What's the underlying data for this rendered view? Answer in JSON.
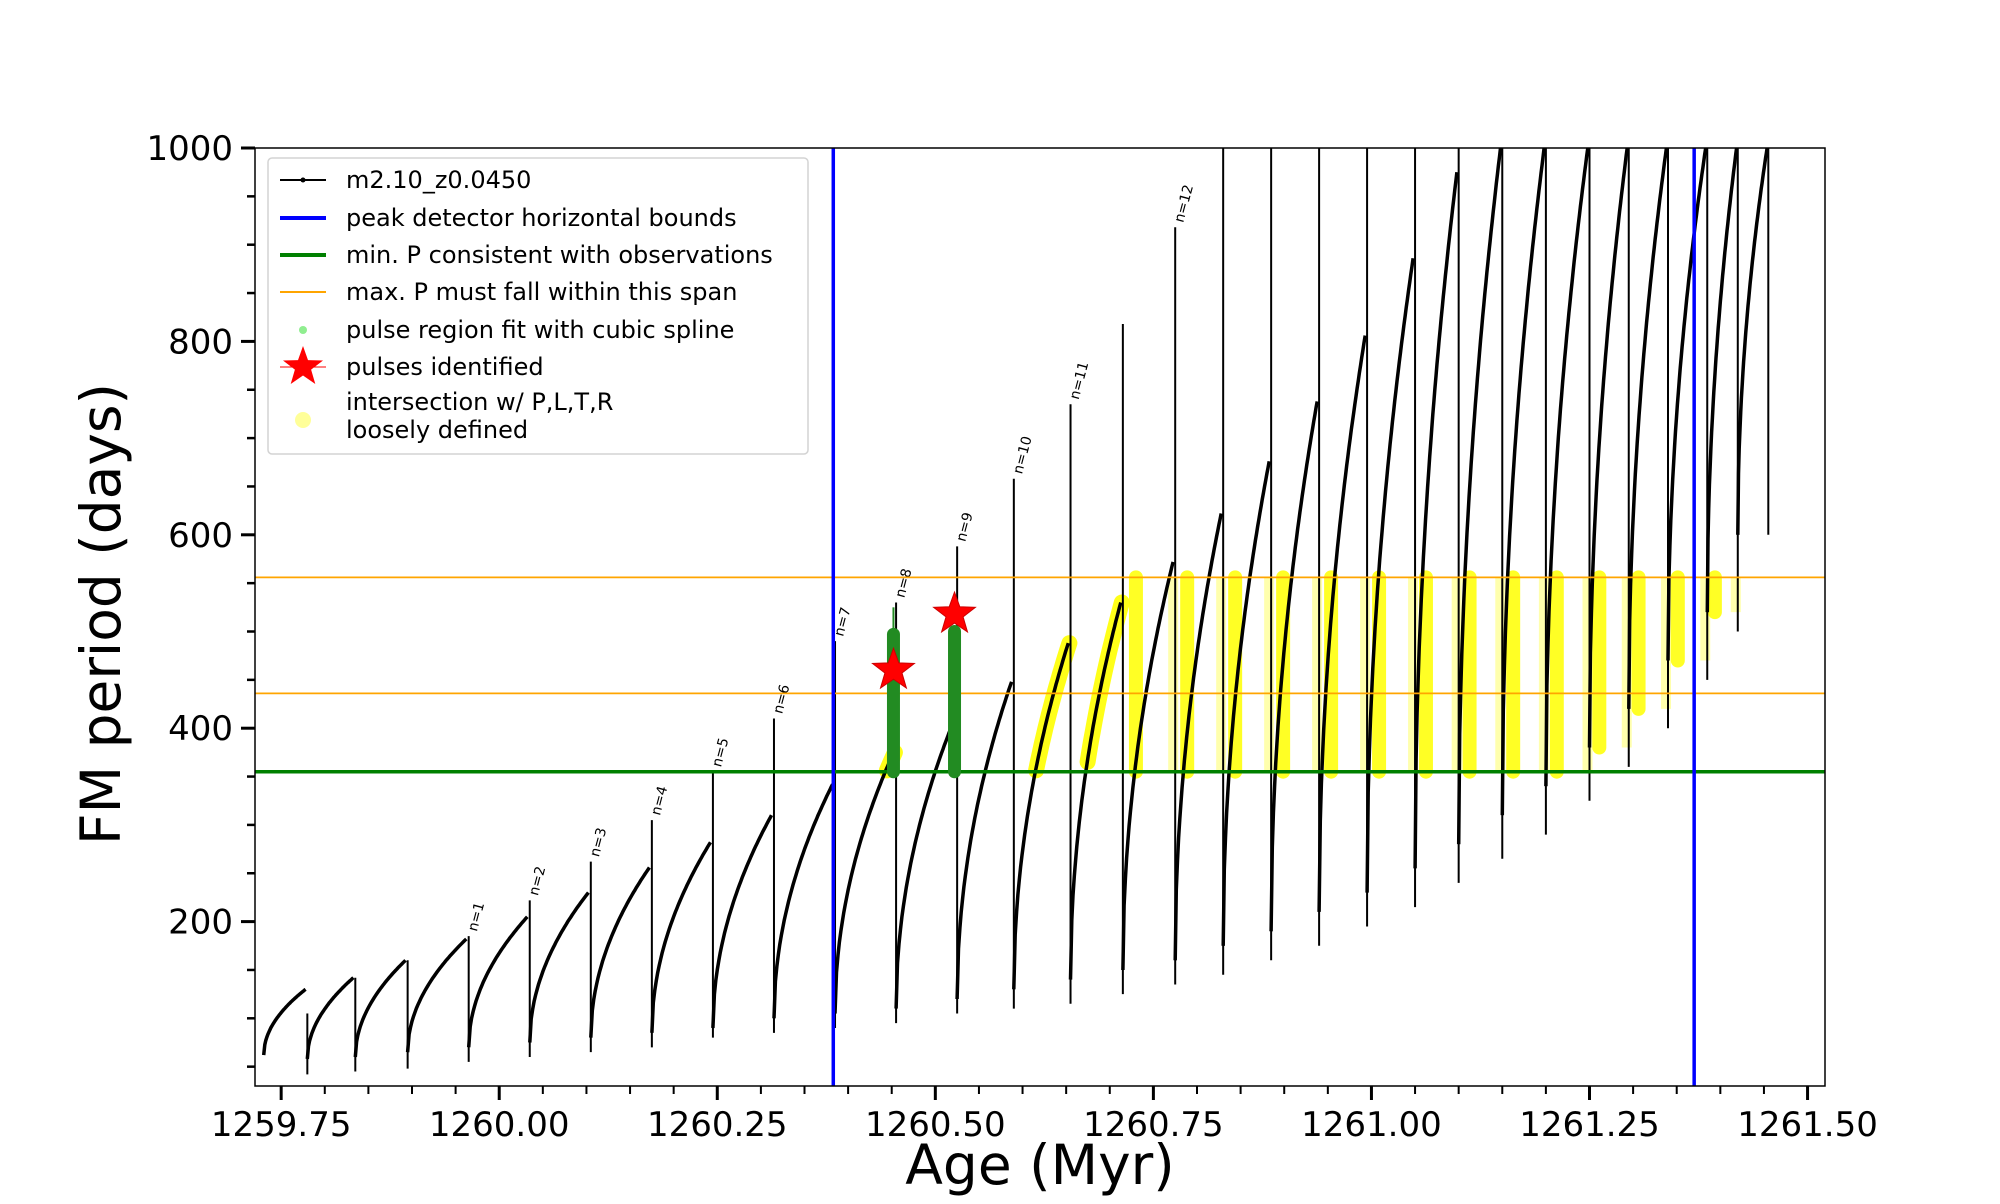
{
  "chart_data": {
    "type": "line",
    "xlabel": "Age (Myr)",
    "ylabel": "FM period (days)",
    "xlim": [
      1259.72,
      1261.52
    ],
    "ylim": [
      30,
      1000
    ],
    "x_ticks": [
      1259.75,
      1260.0,
      1260.25,
      1260.5,
      1260.75,
      1261.0,
      1261.25,
      1261.5
    ],
    "x_tick_labels": [
      "1259.75",
      "1260.00",
      "1260.25",
      "1260.50",
      "1260.75",
      "1261.00",
      "1261.25",
      "1261.50"
    ],
    "y_ticks": [
      200,
      400,
      600,
      800,
      1000
    ],
    "y_tick_labels": [
      "200",
      "400",
      "600",
      "800",
      "1000"
    ],
    "grid": false,
    "legend_position": "top-left",
    "legend": [
      {
        "label": "m2.10_z0.0450",
        "marker": "line-dot",
        "color": "#000000"
      },
      {
        "label": "peak detector horizontal bounds",
        "marker": "line",
        "color": "#0000ff"
      },
      {
        "label": "min. P consistent with observations",
        "marker": "line",
        "color": "#008000"
      },
      {
        "label": "max. P must fall within this span",
        "marker": "thin-line",
        "color": "#ffa500"
      },
      {
        "label": "pulse region fit with cubic spline",
        "marker": "dot",
        "color": "#90ee90"
      },
      {
        "label": "pulses identified",
        "marker": "star",
        "color": "#ff0000"
      },
      {
        "label": "intersection w/ P,L,T,R",
        "label2": "loosely defined",
        "marker": "circle",
        "color": "#ffff99"
      }
    ],
    "vertical_lines": [
      1260.383,
      1261.37
    ],
    "min_period_line": 355,
    "max_period_span": [
      436,
      556
    ],
    "pulses": [
      {
        "start": 1259.73,
        "end": 1259.78,
        "pmin": 62,
        "pmax": 130,
        "spike": 105,
        "low": 42,
        "label": ""
      },
      {
        "start": 1259.78,
        "end": 1259.835,
        "pmin": 58,
        "pmax": 142,
        "spike": null,
        "low": 45,
        "label": ""
      },
      {
        "start": 1259.835,
        "end": 1259.895,
        "pmin": 60,
        "pmax": 160,
        "spike": null,
        "low": 48,
        "label": ""
      },
      {
        "start": 1259.895,
        "end": 1259.965,
        "pmin": 65,
        "pmax": 182,
        "spike": 185,
        "low": 55,
        "label": "n=1"
      },
      {
        "start": 1259.965,
        "end": 1260.035,
        "pmin": 70,
        "pmax": 205,
        "spike": 222,
        "low": 60,
        "label": "n=2"
      },
      {
        "start": 1260.035,
        "end": 1260.105,
        "pmin": 75,
        "pmax": 230,
        "spike": 262,
        "low": 65,
        "label": "n=3"
      },
      {
        "start": 1260.105,
        "end": 1260.175,
        "pmin": 80,
        "pmax": 256,
        "spike": 305,
        "low": 70,
        "label": "n=4"
      },
      {
        "start": 1260.175,
        "end": 1260.245,
        "pmin": 85,
        "pmax": 282,
        "spike": 355,
        "low": 80,
        "label": "n=5"
      },
      {
        "start": 1260.245,
        "end": 1260.315,
        "pmin": 90,
        "pmax": 310,
        "spike": 410,
        "low": 85,
        "label": "n=6"
      },
      {
        "start": 1260.315,
        "end": 1260.385,
        "pmin": 100,
        "pmax": 342,
        "spike": 490,
        "low": 90,
        "label": "n=7"
      },
      {
        "start": 1260.385,
        "end": 1260.455,
        "pmin": 105,
        "pmax": 375,
        "spike": 530,
        "low": 95,
        "label": "n=8"
      },
      {
        "start": 1260.455,
        "end": 1260.525,
        "pmin": 110,
        "pmax": 410,
        "spike": 588,
        "low": 105,
        "label": "n=9"
      },
      {
        "start": 1260.525,
        "end": 1260.59,
        "pmin": 120,
        "pmax": 448,
        "spike": 658,
        "low": 110,
        "label": "n=10"
      },
      {
        "start": 1260.59,
        "end": 1260.655,
        "pmin": 130,
        "pmax": 488,
        "spike": 735,
        "low": 115,
        "label": "n=11"
      },
      {
        "start": 1260.655,
        "end": 1260.715,
        "pmin": 140,
        "pmax": 530,
        "spike": 818,
        "low": 125,
        "label": ""
      },
      {
        "start": 1260.715,
        "end": 1260.775,
        "pmin": 150,
        "pmax": 572,
        "spike": 918,
        "low": 135,
        "label": "n=12"
      },
      {
        "start": 1260.775,
        "end": 1260.83,
        "pmin": 160,
        "pmax": 622,
        "spike": 1000,
        "low": 145,
        "label": ""
      },
      {
        "start": 1260.83,
        "end": 1260.885,
        "pmin": 175,
        "pmax": 676,
        "spike": 1000,
        "low": 160,
        "label": ""
      },
      {
        "start": 1260.885,
        "end": 1260.94,
        "pmin": 190,
        "pmax": 738,
        "spike": 1000,
        "low": 175,
        "label": ""
      },
      {
        "start": 1260.94,
        "end": 1260.995,
        "pmin": 210,
        "pmax": 806,
        "spike": 1000,
        "low": 195,
        "label": ""
      },
      {
        "start": 1260.995,
        "end": 1261.05,
        "pmin": 230,
        "pmax": 886,
        "spike": 1000,
        "low": 215,
        "label": ""
      },
      {
        "start": 1261.05,
        "end": 1261.1,
        "pmin": 255,
        "pmax": 975,
        "spike": 1000,
        "low": 240,
        "label": ""
      },
      {
        "start": 1261.1,
        "end": 1261.15,
        "pmin": 280,
        "pmax": 1000,
        "spike": 1000,
        "low": 265,
        "label": ""
      },
      {
        "start": 1261.15,
        "end": 1261.2,
        "pmin": 310,
        "pmax": 1000,
        "spike": 1000,
        "low": 290,
        "label": ""
      },
      {
        "start": 1261.2,
        "end": 1261.25,
        "pmin": 340,
        "pmax": 1000,
        "spike": 1000,
        "low": 325,
        "label": ""
      },
      {
        "start": 1261.25,
        "end": 1261.295,
        "pmin": 380,
        "pmax": 1000,
        "spike": 1000,
        "low": 360,
        "label": ""
      },
      {
        "start": 1261.295,
        "end": 1261.34,
        "pmin": 420,
        "pmax": 1000,
        "spike": 1000,
        "low": 400,
        "label": ""
      },
      {
        "start": 1261.34,
        "end": 1261.385,
        "pmin": 470,
        "pmax": 1000,
        "spike": 1000,
        "low": 450,
        "label": ""
      },
      {
        "start": 1261.385,
        "end": 1261.42,
        "pmin": 520,
        "pmax": 1000,
        "spike": 1000,
        "low": 500,
        "label": ""
      },
      {
        "start": 1261.42,
        "end": 1261.455,
        "pmin": 600,
        "pmax": 1000,
        "spike": 1000,
        "low": 600,
        "label": ""
      }
    ],
    "green_spline_regions": [
      {
        "x": 1260.452,
        "y0": 355,
        "y1": 497,
        "spike": 525
      },
      {
        "x": 1260.522,
        "y0": 355,
        "y1": 500,
        "spike": null
      }
    ],
    "pulses_identified": [
      {
        "x": 1260.452,
        "y": 460
      },
      {
        "x": 1260.522,
        "y": 518
      }
    ]
  }
}
